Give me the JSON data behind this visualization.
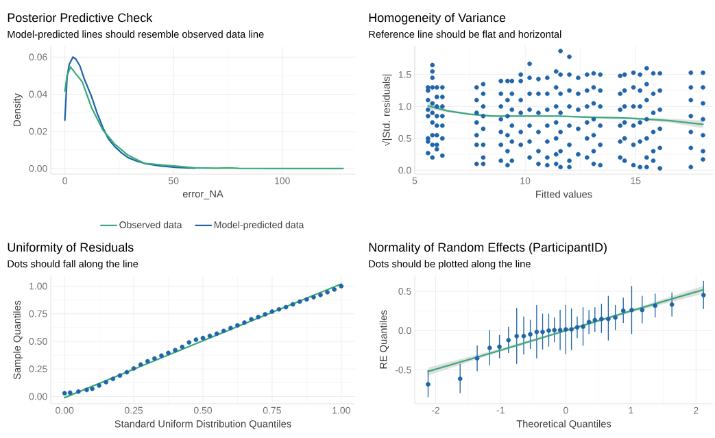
{
  "chart_data": [
    {
      "type": "line",
      "title": "Posterior Predictive Check",
      "subtitle": "Model-predicted lines should resemble observed data line",
      "xlabel": "error_NA",
      "ylabel": "Density",
      "xlim": [
        -6.5,
        133.5
      ],
      "ylim": [
        -0.003,
        0.066
      ],
      "xticks": [
        0,
        50,
        100
      ],
      "yticks": [
        {
          "value": 0,
          "label": "0.00"
        },
        {
          "value": 0.02,
          "label": "0.02"
        },
        {
          "value": 0.04,
          "label": "0.04"
        },
        {
          "value": 0.06,
          "label": "0.06"
        }
      ],
      "grid": true,
      "legend": "bottom",
      "series": [
        {
          "name": "Observed data",
          "color": "#3aaa78",
          "x": [
            0,
            1,
            2.6,
            5,
            8,
            12.2,
            17.5,
            22.8,
            29,
            36.5,
            44,
            50,
            60,
            70,
            75.7,
            80,
            100,
            128
          ],
          "values": [
            0.0417,
            0.05,
            0.0547,
            0.051,
            0.0467,
            0.033,
            0.0207,
            0.0133,
            0.0072,
            0.0028,
            0.002,
            0.0014,
            0.0004,
            0.0002,
            0.0004,
            0.0001,
            0,
            0
          ]
        },
        {
          "name": "Model-predicted data",
          "color": "#1f65a8",
          "x": [
            0,
            1,
            2,
            3.7,
            5,
            6.9,
            9,
            12.2,
            14.8,
            17.5,
            20,
            22.8,
            26,
            29,
            33,
            37.6,
            44,
            50,
            60
          ],
          "values": [
            0.026,
            0.049,
            0.056,
            0.06,
            0.059,
            0.0553,
            0.048,
            0.039,
            0.03,
            0.022,
            0.016,
            0.012,
            0.0085,
            0.0059,
            0.004,
            0.0025,
            0.0014,
            0.0007,
            0.0002
          ]
        }
      ]
    },
    {
      "type": "scatter",
      "title": "Homogeneity of Variance",
      "subtitle": "Reference line should be flat and horizontal",
      "xlabel": "Fitted values",
      "ylabel": "√|Std. residuals|",
      "xlim": [
        5,
        18.5
      ],
      "ylim": [
        -0.06,
        1.95
      ],
      "xticks": [
        5,
        10,
        15
      ],
      "yticks": [
        {
          "value": 0,
          "label": "0.0"
        },
        {
          "value": 0.5,
          "label": "0.5"
        },
        {
          "value": 1,
          "label": "1.0"
        },
        {
          "value": 1.5,
          "label": "1.5"
        }
      ],
      "grid": true,
      "series": [
        {
          "type": "line",
          "color": "#3aaa78",
          "x": [
            5.6,
            6.5,
            7.5,
            8.5,
            10,
            11.5,
            13,
            14.5,
            15.5,
            16.5,
            18.05
          ],
          "values": [
            1.01,
            0.93,
            0.88,
            0.85,
            0.85,
            0.85,
            0.83,
            0.82,
            0.8,
            0.78,
            0.72
          ],
          "lower": [
            0.96,
            0.91,
            0.865,
            0.835,
            0.838,
            0.84,
            0.818,
            0.805,
            0.78,
            0.75,
            0.66
          ],
          "upper": [
            1.06,
            0.95,
            0.895,
            0.865,
            0.862,
            0.86,
            0.842,
            0.835,
            0.82,
            0.81,
            0.78
          ]
        },
        {
          "type": "scatter",
          "marker": "circle",
          "color": "#1f65a8",
          "x": [
            5.6,
            5.6,
            5.6,
            5.6,
            5.6,
            5.6,
            5.6,
            5.6,
            5.8,
            5.8,
            5.8,
            5.8,
            5.8,
            5.8,
            5.8,
            5.8,
            5.8,
            5.8,
            6.0,
            6.0,
            6.0,
            6.0,
            6.0,
            6.0,
            6.0,
            6.0,
            6.25,
            6.25,
            6.25,
            6.25,
            6.25,
            6.25,
            6.25,
            7.8,
            7.8,
            7.8,
            7.8,
            7.8,
            7.8,
            7.8,
            8.1,
            8.1,
            8.1,
            8.1,
            8.1,
            8.1,
            8.1,
            8.1,
            8.9,
            8.9,
            8.9,
            8.9,
            8.9,
            8.9,
            8.9,
            9.2,
            9.2,
            9.2,
            9.2,
            9.2,
            9.2,
            9.4,
            9.4,
            9.4,
            9.4,
            9.4,
            9.4,
            9.8,
            9.8,
            9.8,
            9.8,
            9.8,
            9.8,
            10.2,
            10.2,
            10.2,
            10.2,
            10.2,
            10.2,
            10.2,
            10.6,
            10.6,
            10.6,
            10.6,
            10.6,
            10.6,
            11.0,
            11.0,
            11.0,
            11.0,
            11.0,
            11.0,
            11.0,
            11.4,
            11.4,
            11.4,
            11.4,
            11.4,
            11.4,
            11.4,
            11.6,
            11.6,
            11.6,
            11.6,
            11.6,
            11.6,
            11.6,
            12.0,
            12.0,
            12.0,
            12.0,
            12.0,
            12.0,
            12.0,
            12.0,
            12.4,
            12.4,
            12.4,
            12.4,
            12.4,
            12.8,
            12.8,
            12.8,
            12.8,
            12.8,
            12.8,
            13.1,
            13.1,
            13.1,
            13.1,
            13.1,
            13.1,
            13.1,
            13.4,
            13.4,
            13.4,
            13.4,
            13.4,
            13.4,
            14.3,
            14.3,
            14.3,
            14.3,
            14.3,
            14.3,
            14.5,
            14.5,
            14.5,
            14.5,
            14.5,
            14.5,
            14.9,
            14.9,
            14.9,
            14.9,
            14.9,
            14.9,
            15.2,
            15.2,
            15.2,
            15.2,
            15.2,
            15.2,
            15.5,
            15.5,
            15.5,
            15.5,
            15.5,
            15.5,
            15.5,
            15.8,
            15.8,
            15.8,
            15.8,
            15.8,
            15.8,
            16.1,
            16.1,
            16.1,
            16.1,
            16.1,
            16.1,
            17.5,
            17.5,
            17.5,
            17.5,
            17.5,
            17.5,
            17.5,
            18.05,
            18.05,
            18.05,
            18.05,
            18.05,
            18.05,
            18.05
          ],
          "values": [
            1.3,
            1.25,
            1.1,
            0.95,
            0.85,
            0.5,
            0.45,
            0.27,
            1.65,
            1.55,
            1.45,
            1.3,
            1.05,
            0.9,
            0.75,
            0.55,
            0.4,
            0.2,
            1.3,
            1.15,
            1.0,
            0.85,
            0.7,
            0.55,
            0.4,
            0.33,
            1.3,
            1.15,
            1.0,
            0.85,
            0.7,
            0.5,
            0.23,
            1.3,
            1.1,
            0.9,
            0.75,
            0.55,
            0.4,
            0.1,
            1.35,
            1.2,
            1.0,
            0.85,
            0.65,
            0.4,
            0.2,
            0.1,
            1.4,
            1.2,
            1.0,
            0.8,
            0.6,
            0.4,
            0.15,
            1.4,
            1.1,
            0.85,
            0.55,
            0.3,
            0.08,
            1.4,
            1.2,
            0.95,
            0.7,
            0.45,
            0.15,
            1.5,
            1.4,
            1.1,
            0.9,
            0.6,
            0.4,
            1.67,
            1.45,
            1.2,
            0.95,
            0.7,
            0.45,
            0.2,
            1.43,
            1.2,
            0.9,
            0.6,
            0.3,
            0.1,
            1.45,
            1.2,
            0.95,
            0.7,
            0.45,
            0.2,
            0.08,
            1.55,
            1.3,
            1.0,
            0.75,
            0.5,
            0.25,
            0.1,
            1.87,
            1.5,
            1.2,
            0.9,
            0.6,
            0.3,
            0.05,
            1.78,
            1.5,
            1.25,
            1.0,
            0.7,
            0.4,
            0.15,
            0.05,
            1.45,
            1.2,
            0.95,
            0.65,
            0.25,
            1.5,
            1.25,
            1.0,
            0.75,
            0.5,
            0.2,
            1.52,
            1.3,
            1.05,
            0.8,
            0.55,
            0.3,
            0.1,
            1.5,
            1.25,
            1.0,
            0.7,
            0.4,
            0.08,
            1.48,
            1.2,
            0.95,
            0.7,
            0.45,
            0.2,
            1.5,
            1.25,
            1.0,
            0.75,
            0.5,
            0.15,
            1.53,
            1.3,
            1.0,
            0.7,
            0.4,
            0.08,
            1.5,
            1.25,
            1.0,
            0.75,
            0.45,
            0.05,
            1.6,
            1.35,
            1.1,
            0.8,
            0.5,
            0.2,
            0.05,
            1.52,
            1.2,
            0.9,
            0.6,
            0.3,
            0.15,
            1.52,
            1.25,
            0.95,
            0.65,
            0.35,
            0.03,
            1.53,
            1.3,
            1.1,
            0.85,
            0.6,
            0.35,
            0.05,
            1.53,
            1.3,
            1.05,
            0.8,
            0.55,
            0.3,
            0.17
          ]
        }
      ]
    },
    {
      "type": "scatter",
      "title": "Uniformity of Residuals",
      "subtitle": "Dots should fall along the line",
      "xlabel": "Standard Uniform Distribution Quantiles",
      "ylabel": "Sample Quantiles",
      "xlim": [
        -0.05,
        1.05
      ],
      "ylim": [
        -0.065,
        1.09
      ],
      "xticks": [
        {
          "value": 0,
          "label": "0.00"
        },
        {
          "value": 0.25,
          "label": "0.25"
        },
        {
          "value": 0.5,
          "label": "0.50"
        },
        {
          "value": 0.75,
          "label": "0.75"
        },
        {
          "value": 1,
          "label": "1.00"
        }
      ],
      "yticks": [
        {
          "value": 0,
          "label": "0.00"
        },
        {
          "value": 0.25,
          "label": "0.25"
        },
        {
          "value": 0.5,
          "label": "0.50"
        },
        {
          "value": 0.75,
          "label": "0.75"
        },
        {
          "value": 1,
          "label": "1.00"
        }
      ],
      "grid": true,
      "series": [
        {
          "type": "line",
          "color": "#3aaa78",
          "x": [
            0,
            1
          ],
          "values": [
            -0.01,
            1.02
          ]
        },
        {
          "type": "scatter",
          "marker": "circle",
          "color": "#1f65a8",
          "x": [
            0,
            0.02,
            0.05,
            0.08,
            0.1,
            0.125,
            0.15,
            0.175,
            0.2,
            0.225,
            0.25,
            0.275,
            0.3,
            0.325,
            0.35,
            0.375,
            0.4,
            0.425,
            0.45,
            0.475,
            0.5,
            0.525,
            0.55,
            0.575,
            0.6,
            0.625,
            0.65,
            0.675,
            0.7,
            0.725,
            0.75,
            0.775,
            0.8,
            0.825,
            0.85,
            0.875,
            0.9,
            0.925,
            0.95,
            0.975,
            1.0
          ],
          "values": [
            0.03,
            0.035,
            0.045,
            0.06,
            0.07,
            0.1,
            0.13,
            0.16,
            0.19,
            0.22,
            0.255,
            0.29,
            0.32,
            0.345,
            0.37,
            0.395,
            0.42,
            0.45,
            0.49,
            0.515,
            0.53,
            0.55,
            0.57,
            0.595,
            0.62,
            0.645,
            0.67,
            0.7,
            0.72,
            0.745,
            0.77,
            0.79,
            0.81,
            0.835,
            0.86,
            0.88,
            0.9,
            0.92,
            0.945,
            0.97,
            1.0
          ]
        }
      ]
    },
    {
      "type": "scatter",
      "title": "Normality of Random Effects (ParticipantID)",
      "subtitle": "Dots should be plotted along the line",
      "xlabel": "Theoretical Quantiles",
      "ylabel": "RE Quantiles",
      "xlim": [
        -2.32,
        2.26
      ],
      "ylim": [
        -0.93,
        0.7
      ],
      "xticks": [
        -2,
        -1,
        0,
        1,
        2
      ],
      "yticks": [
        -0.5,
        {
          "value": 0,
          "label": "0.0"
        },
        0.5
      ],
      "grid": true,
      "series": [
        {
          "type": "line",
          "color": "#3aaa78",
          "x": [
            -2.115,
            -1,
            0,
            1,
            2.115
          ],
          "values": [
            -0.52,
            -0.25,
            0,
            0.25,
            0.52
          ],
          "lower": [
            -0.57,
            -0.265,
            -0.015,
            0.226,
            0.47
          ],
          "upper": [
            -0.47,
            -0.226,
            0.015,
            0.265,
            0.57
          ]
        },
        {
          "type": "scatter",
          "marker": "circle",
          "color": "#1f65a8",
          "x": [
            -2.115,
            -1.623,
            -1.361,
            -1.169,
            -1.019,
            -0.88,
            -0.754,
            -0.646,
            -0.545,
            -0.447,
            -0.356,
            -0.262,
            -0.175,
            -0.087,
            0.0,
            0.087,
            0.175,
            0.265,
            0.356,
            0.447,
            0.548,
            0.653,
            0.761,
            0.883,
            1.012,
            1.173,
            1.372,
            1.63,
            2.115
          ],
          "values": [
            -0.683,
            -0.613,
            -0.352,
            -0.221,
            -0.206,
            -0.122,
            -0.07,
            -0.07,
            -0.047,
            -0.017,
            -0.017,
            0.0,
            0.006,
            0.006,
            0.015,
            0.015,
            0.041,
            0.049,
            0.108,
            0.134,
            0.148,
            0.148,
            0.166,
            0.253,
            0.262,
            0.262,
            0.317,
            0.331,
            0.451
          ],
          "errors": [
            [
              -0.846,
              -0.503
            ],
            [
              -0.794,
              -0.422
            ],
            [
              -0.517,
              -0.189
            ],
            [
              -0.445,
              0.006
            ],
            [
              -0.352,
              -0.055
            ],
            [
              -0.285,
              0.049
            ],
            [
              -0.422,
              0.288
            ],
            [
              -0.305,
              0.18
            ],
            [
              -0.233,
              0.137
            ],
            [
              -0.352,
              0.326
            ],
            [
              -0.241,
              0.215
            ],
            [
              -0.203,
              0.215
            ],
            [
              -0.148,
              0.166
            ],
            [
              -0.247,
              0.265
            ],
            [
              -0.299,
              0.326
            ],
            [
              -0.247,
              0.282
            ],
            [
              -0.096,
              0.18
            ],
            [
              -0.192,
              0.297
            ],
            [
              -0.044,
              0.259
            ],
            [
              -0.015,
              0.297
            ],
            [
              -0.029,
              0.34
            ],
            [
              -0.125,
              0.442
            ],
            [
              0.006,
              0.326
            ],
            [
              0.099,
              0.419
            ],
            [
              -0.044,
              0.567
            ],
            [
              0.093,
              0.442
            ],
            [
              0.166,
              0.471
            ],
            [
              0.18,
              0.485
            ],
            [
              0.273,
              0.631
            ]
          ]
        }
      ]
    }
  ]
}
